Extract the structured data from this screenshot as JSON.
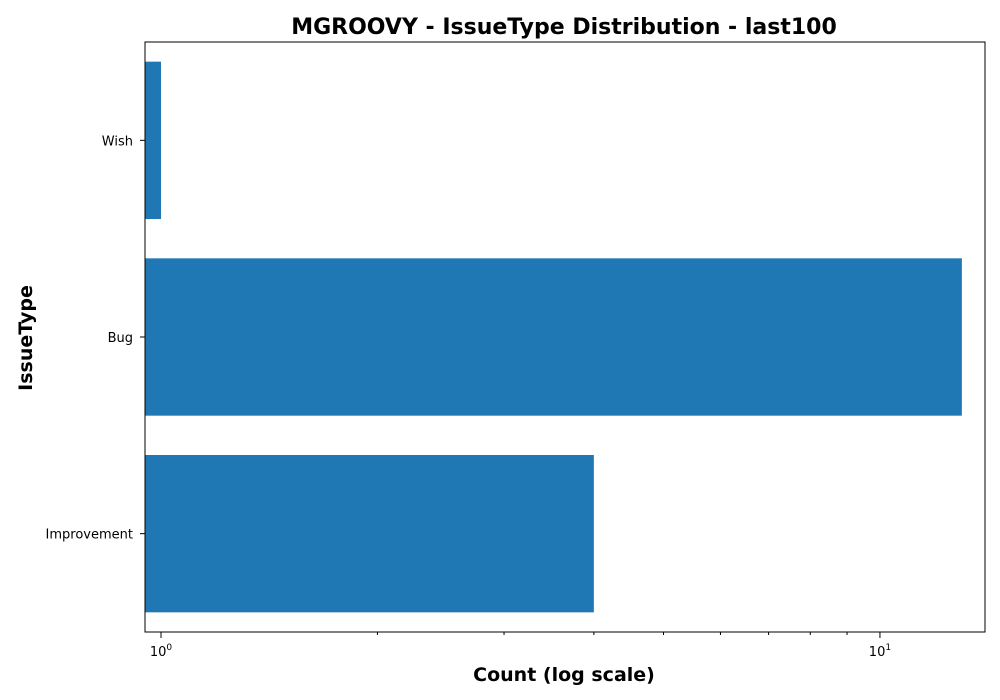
{
  "chart_data": {
    "type": "bar",
    "orientation": "horizontal",
    "title": "MGROOVY - IssueType Distribution - last100",
    "xlabel": "Count (log scale)",
    "ylabel": "IssueType",
    "x_scale": "log",
    "xlim": [
      0.95,
      14
    ],
    "categories": [
      "Improvement",
      "Bug",
      "Wish"
    ],
    "values": [
      4,
      13,
      1
    ],
    "x_major_ticks": [
      {
        "value": 1,
        "base": "10",
        "exp": "0"
      },
      {
        "value": 10,
        "base": "10",
        "exp": "1"
      }
    ],
    "x_minor_ticks": [
      2,
      3,
      4,
      5,
      6,
      7,
      8,
      9
    ],
    "bar_color": "#1f77b4",
    "grid": false,
    "legend": null
  }
}
